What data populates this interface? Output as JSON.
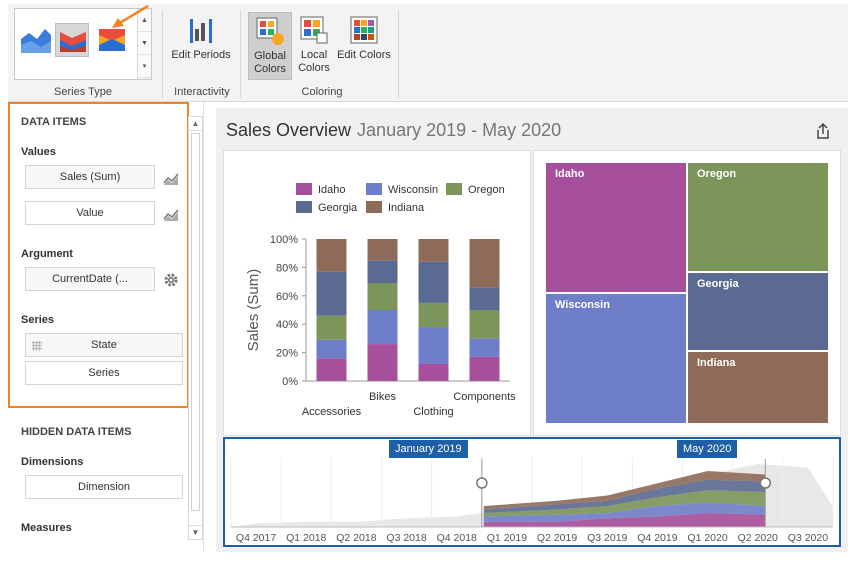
{
  "ribbon": {
    "groups": {
      "series_type": "Series Type",
      "interactivity": "Interactivity",
      "coloring": "Coloring"
    },
    "buttons": {
      "edit_periods": "Edit Periods",
      "global_colors": "Global Colors",
      "local_colors": "Local Colors",
      "edit_colors": "Edit Colors"
    }
  },
  "left_panel": {
    "data_items": "DATA ITEMS",
    "values_header": "Values",
    "values": [
      "Sales (Sum)",
      "Value"
    ],
    "argument_header": "Argument",
    "argument": "CurrentDate (...",
    "series_header": "Series",
    "series": [
      "State",
      "Series"
    ],
    "hidden_header": "HIDDEN DATA ITEMS",
    "dimensions_header": "Dimensions",
    "dimension_placeholder": "Dimension",
    "measures_header": "Measures"
  },
  "dashboard": {
    "title": "Sales Overview",
    "period": "January 2019 - May 2020"
  },
  "colors": {
    "Idaho": "#a64f9b",
    "Wisconsin": "#6f7ec9",
    "Oregon": "#7b955a",
    "Georgia": "#5b6a92",
    "Indiana": "#8e6b58",
    "accent": "#f58220",
    "range": "#1f5fa5"
  },
  "chart_data": [
    {
      "type": "bar",
      "subtype": "full-stacked",
      "title": "",
      "ylabel": "Sales (Sum)",
      "xlabel": "",
      "ylim": [
        0,
        100
      ],
      "yticks": [
        "0%",
        "20%",
        "40%",
        "60%",
        "80%",
        "100%"
      ],
      "categories": [
        "Accessories",
        "Bikes",
        "Clothing",
        "Components"
      ],
      "legend": [
        "Idaho",
        "Wisconsin",
        "Oregon",
        "Georgia",
        "Indiana"
      ],
      "series": [
        {
          "name": "Idaho",
          "values": [
            16,
            26,
            12,
            17
          ]
        },
        {
          "name": "Wisconsin",
          "values": [
            13,
            24,
            26,
            13
          ]
        },
        {
          "name": "Oregon",
          "values": [
            17,
            19,
            17,
            20
          ]
        },
        {
          "name": "Georgia",
          "values": [
            31,
            16,
            29,
            16
          ]
        },
        {
          "name": "Indiana",
          "values": [
            23,
            15,
            16,
            34
          ]
        }
      ]
    },
    {
      "type": "treemap",
      "labels": [
        "Idaho",
        "Oregon",
        "Wisconsin",
        "Georgia",
        "Indiana"
      ],
      "values": [
        25,
        21,
        25,
        15,
        14
      ]
    },
    {
      "type": "area",
      "subtype": "range-filter",
      "xticks": [
        "Q4 2017",
        "Q1 2018",
        "Q2 2018",
        "Q3 2018",
        "Q4 2018",
        "Q1 2019",
        "Q2 2019",
        "Q3 2019",
        "Q4 2019",
        "Q1 2020",
        "Q2 2020",
        "Q3 2020"
      ],
      "selection_start": "January 2019",
      "selection_end": "May 2020",
      "series": [
        {
          "name": "Idaho",
          "values": [
            1,
            1,
            2,
            2,
            2,
            3,
            3,
            5,
            6,
            8,
            7,
            0
          ]
        },
        {
          "name": "Wisconsin",
          "values": [
            1,
            1,
            1,
            2,
            2,
            3,
            4,
            3,
            6,
            6,
            5,
            0
          ]
        },
        {
          "name": "Oregon",
          "values": [
            1,
            1,
            1,
            1,
            2,
            2,
            3,
            4,
            5,
            7,
            8,
            0
          ]
        },
        {
          "name": "Georgia",
          "values": [
            1,
            1,
            1,
            2,
            2,
            2,
            3,
            3,
            5,
            6,
            6,
            0
          ]
        },
        {
          "name": "Indiana",
          "values": [
            1,
            1,
            1,
            1,
            2,
            2,
            2,
            3,
            3,
            5,
            4,
            0
          ]
        }
      ]
    }
  ]
}
